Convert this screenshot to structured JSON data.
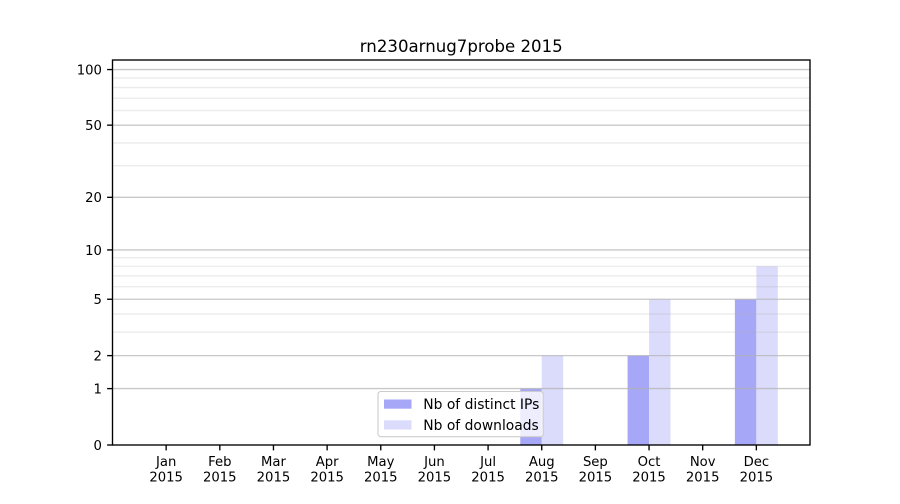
{
  "chart_data": {
    "type": "bar",
    "title": "rn230arnug7probe 2015",
    "months": [
      "Jan",
      "Feb",
      "Mar",
      "Apr",
      "May",
      "Jun",
      "Jul",
      "Aug",
      "Sep",
      "Oct",
      "Nov",
      "Dec"
    ],
    "year": "2015",
    "series": [
      {
        "name": "Nb of distinct IPs",
        "color": "#a7a7f7",
        "values": [
          0,
          0,
          0,
          0,
          0,
          0,
          0,
          1,
          0,
          2,
          0,
          5
        ]
      },
      {
        "name": "Nb of downloads",
        "color": "#dbdbfb",
        "values": [
          0,
          0,
          0,
          0,
          0,
          0,
          0,
          2,
          0,
          5,
          0,
          8
        ]
      }
    ],
    "y_scale": "log1p",
    "y_major_ticks": [
      0,
      1,
      2,
      5,
      10,
      20,
      50,
      100
    ],
    "y_major_tick_labels": [
      "0",
      "1",
      "2",
      "5",
      "10",
      "20",
      "50",
      "100"
    ],
    "y_minor_ticks": [
      3,
      4,
      6,
      7,
      8,
      9,
      30,
      40,
      60,
      70,
      80,
      90
    ],
    "ylim": [
      0,
      112.6
    ],
    "xlim": [
      0,
      13
    ],
    "bar_width": 0.4,
    "grid": {
      "major_color": "rgba(176,176,176,0.7)",
      "minor_color": "rgba(176,176,176,0.25)",
      "grid_above_bars": true
    },
    "legend": {
      "position": "lower center",
      "labels": [
        "Nb of distinct IPs",
        "Nb of downloads"
      ],
      "frame_color": "#cccccc",
      "background": "rgba(255,255,255,0.8)"
    },
    "axis_color": "#000000",
    "text_color": "#000000",
    "background": "#ffffff"
  }
}
